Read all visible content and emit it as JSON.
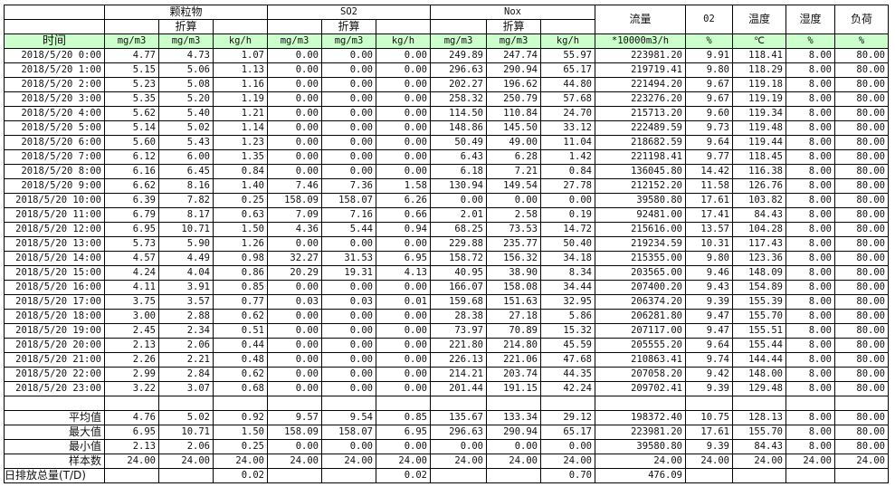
{
  "header": {
    "groups": [
      "颗粒物",
      "SO2",
      "Nox"
    ],
    "converted": "折算",
    "flow": "流量",
    "o2": "02",
    "temp": "温度",
    "humidity": "湿度",
    "load": "负荷",
    "units": [
      "时间",
      "mg/m3",
      "mg/m3",
      "kg/h",
      "mg/m3",
      "mg/m3",
      "kg/h",
      "mg/m3",
      "mg/m3",
      "kg/h",
      "*10000m3/h",
      "%",
      "℃",
      "%",
      "%"
    ]
  },
  "colors": {
    "units_row_bg": "#ccffcc"
  },
  "rows": [
    [
      "2018/5/20 0:00",
      "4.77",
      "4.73",
      "1.07",
      "0.00",
      "0.00",
      "0.00",
      "249.89",
      "247.74",
      "55.97",
      "223981.20",
      "9.91",
      "118.41",
      "8.00",
      "80.00"
    ],
    [
      "2018/5/20 1:00",
      "5.15",
      "5.06",
      "1.13",
      "0.00",
      "0.00",
      "0.00",
      "296.63",
      "290.94",
      "65.17",
      "219719.41",
      "9.80",
      "118.29",
      "8.00",
      "80.00"
    ],
    [
      "2018/5/20 2:00",
      "5.23",
      "5.08",
      "1.16",
      "0.00",
      "0.00",
      "0.00",
      "202.27",
      "196.62",
      "44.80",
      "221494.20",
      "9.67",
      "119.18",
      "8.00",
      "80.00"
    ],
    [
      "2018/5/20 3:00",
      "5.35",
      "5.20",
      "1.19",
      "0.00",
      "0.00",
      "0.00",
      "258.32",
      "250.79",
      "57.68",
      "223276.20",
      "9.67",
      "119.19",
      "8.00",
      "80.00"
    ],
    [
      "2018/5/20 4:00",
      "5.62",
      "5.40",
      "1.21",
      "0.00",
      "0.00",
      "0.00",
      "114.50",
      "110.84",
      "24.70",
      "215713.20",
      "9.60",
      "119.34",
      "8.00",
      "80.00"
    ],
    [
      "2018/5/20 5:00",
      "5.14",
      "5.02",
      "1.14",
      "0.00",
      "0.00",
      "0.00",
      "148.86",
      "145.50",
      "33.12",
      "222489.59",
      "9.73",
      "119.48",
      "8.00",
      "80.00"
    ],
    [
      "2018/5/20 6:00",
      "5.60",
      "5.43",
      "1.23",
      "0.00",
      "0.00",
      "0.00",
      "50.49",
      "49.00",
      "11.04",
      "218682.59",
      "9.64",
      "119.44",
      "8.00",
      "80.00"
    ],
    [
      "2018/5/20 7:00",
      "6.12",
      "6.00",
      "1.35",
      "0.00",
      "0.00",
      "0.00",
      "6.43",
      "6.28",
      "1.42",
      "221198.41",
      "9.77",
      "118.45",
      "8.00",
      "80.00"
    ],
    [
      "2018/5/20 8:00",
      "6.16",
      "6.45",
      "0.84",
      "0.00",
      "0.00",
      "0.00",
      "6.18",
      "7.21",
      "0.84",
      "136045.80",
      "14.42",
      "116.38",
      "8.00",
      "80.00"
    ],
    [
      "2018/5/20 9:00",
      "6.62",
      "8.16",
      "1.40",
      "7.46",
      "7.36",
      "1.58",
      "130.94",
      "149.54",
      "27.78",
      "212152.20",
      "11.58",
      "126.76",
      "8.00",
      "80.00"
    ],
    [
      "2018/5/20 10:00",
      "6.39",
      "7.82",
      "0.25",
      "158.09",
      "158.07",
      "6.26",
      "0.00",
      "0.00",
      "0.00",
      "39580.80",
      "17.61",
      "103.82",
      "8.00",
      "80.00"
    ],
    [
      "2018/5/20 11:00",
      "6.79",
      "8.17",
      "0.63",
      "7.09",
      "7.16",
      "0.66",
      "2.01",
      "2.58",
      "0.19",
      "92481.00",
      "17.41",
      "84.43",
      "8.00",
      "80.00"
    ],
    [
      "2018/5/20 12:00",
      "6.95",
      "10.71",
      "1.50",
      "4.36",
      "5.44",
      "0.94",
      "68.25",
      "73.53",
      "14.72",
      "215616.00",
      "13.57",
      "104.28",
      "8.00",
      "80.00"
    ],
    [
      "2018/5/20 13:00",
      "5.73",
      "5.90",
      "1.26",
      "0.00",
      "0.00",
      "0.00",
      "229.88",
      "235.77",
      "50.40",
      "219234.59",
      "10.31",
      "117.43",
      "8.00",
      "80.00"
    ],
    [
      "2018/5/20 14:00",
      "4.57",
      "4.49",
      "0.98",
      "32.27",
      "31.53",
      "6.95",
      "158.72",
      "156.32",
      "34.18",
      "215355.00",
      "9.80",
      "123.36",
      "8.00",
      "80.00"
    ],
    [
      "2018/5/20 15:00",
      "4.24",
      "4.04",
      "0.86",
      "20.29",
      "19.31",
      "4.13",
      "40.95",
      "38.90",
      "8.34",
      "203565.00",
      "9.46",
      "148.09",
      "8.00",
      "80.00"
    ],
    [
      "2018/5/20 16:00",
      "4.11",
      "3.91",
      "0.85",
      "0.00",
      "0.00",
      "0.00",
      "166.07",
      "158.08",
      "34.44",
      "207400.20",
      "9.43",
      "154.89",
      "8.00",
      "80.00"
    ],
    [
      "2018/5/20 17:00",
      "3.75",
      "3.57",
      "0.77",
      "0.03",
      "0.03",
      "0.01",
      "159.68",
      "151.63",
      "32.95",
      "206374.20",
      "9.39",
      "155.39",
      "8.00",
      "80.00"
    ],
    [
      "2018/5/20 18:00",
      "3.00",
      "2.88",
      "0.62",
      "0.00",
      "0.00",
      "0.00",
      "28.38",
      "27.18",
      "5.86",
      "206281.80",
      "9.47",
      "155.70",
      "8.00",
      "80.00"
    ],
    [
      "2018/5/20 19:00",
      "2.45",
      "2.34",
      "0.51",
      "0.00",
      "0.00",
      "0.00",
      "73.97",
      "70.89",
      "15.32",
      "207117.00",
      "9.47",
      "155.51",
      "8.00",
      "80.00"
    ],
    [
      "2018/5/20 20:00",
      "2.13",
      "2.06",
      "0.44",
      "0.00",
      "0.00",
      "0.00",
      "221.80",
      "214.80",
      "45.59",
      "205555.20",
      "9.64",
      "155.44",
      "8.00",
      "80.00"
    ],
    [
      "2018/5/20 21:00",
      "2.26",
      "2.21",
      "0.48",
      "0.00",
      "0.00",
      "0.00",
      "226.13",
      "221.06",
      "47.68",
      "210863.41",
      "9.74",
      "144.44",
      "8.00",
      "80.00"
    ],
    [
      "2018/5/20 22:00",
      "2.99",
      "2.84",
      "0.62",
      "0.00",
      "0.00",
      "0.00",
      "214.21",
      "203.74",
      "44.35",
      "207058.20",
      "9.42",
      "148.00",
      "8.00",
      "80.00"
    ],
    [
      "2018/5/20 23:00",
      "3.22",
      "3.07",
      "0.68",
      "0.00",
      "0.00",
      "0.00",
      "201.44",
      "191.15",
      "42.24",
      "209702.41",
      "9.39",
      "129.48",
      "8.00",
      "80.00"
    ]
  ],
  "stats": [
    [
      "平均值",
      "4.76",
      "5.02",
      "0.92",
      "9.57",
      "9.54",
      "0.85",
      "135.67",
      "133.34",
      "29.12",
      "198372.40",
      "10.75",
      "128.13",
      "8.00",
      "80.00"
    ],
    [
      "最大值",
      "6.95",
      "10.71",
      "1.50",
      "158.09",
      "158.07",
      "6.95",
      "296.63",
      "290.94",
      "65.17",
      "223981.20",
      "17.61",
      "155.70",
      "8.00",
      "80.00"
    ],
    [
      "最小值",
      "2.13",
      "2.06",
      "0.25",
      "0.00",
      "0.00",
      "0.00",
      "0.00",
      "0.00",
      "0.00",
      "39580.80",
      "9.39",
      "84.43",
      "8.00",
      "80.00"
    ],
    [
      "样本数",
      "24.00",
      "24.00",
      "24.00",
      "24.00",
      "24.00",
      "24.00",
      "24.00",
      "24.00",
      "24.00",
      "24.00",
      "24.00",
      "24.00",
      "24.00",
      "24.00"
    ],
    [
      "日排放总量(T/D)",
      "",
      "",
      "0.02",
      "",
      "",
      "0.02",
      "",
      "",
      "0.70",
      "476.09",
      "",
      "",
      "",
      ""
    ]
  ]
}
